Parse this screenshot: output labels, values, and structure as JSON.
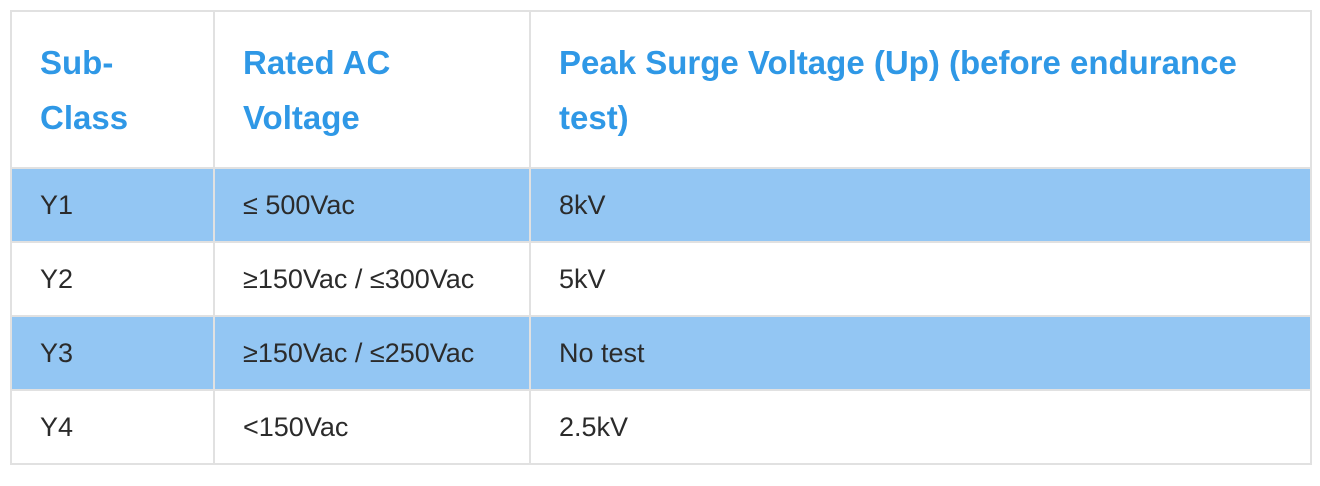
{
  "table": {
    "headers": [
      "Sub-\nClass",
      "Rated AC\nVoltage",
      "Peak Surge Voltage (Up) (before endurance test)"
    ],
    "rows": [
      {
        "sub_class": "Y1",
        "rated_ac_voltage": "≤ 500Vac",
        "peak_surge_voltage": "8kV",
        "highlighted": true
      },
      {
        "sub_class": "Y2",
        "rated_ac_voltage": "≥150Vac / ≤300Vac",
        "peak_surge_voltage": "5kV",
        "highlighted": false
      },
      {
        "sub_class": "Y3",
        "rated_ac_voltage": "≥150Vac / ≤250Vac",
        "peak_surge_voltage": "No test",
        "highlighted": true
      },
      {
        "sub_class": "Y4",
        "rated_ac_voltage": "<150Vac",
        "peak_surge_voltage": "2.5kV",
        "highlighted": false
      }
    ],
    "colors": {
      "header_text": "#2f98e6",
      "highlight_row": "#93c6f3",
      "border": "#e1e1e1",
      "body_text": "#2b2b2b"
    }
  }
}
